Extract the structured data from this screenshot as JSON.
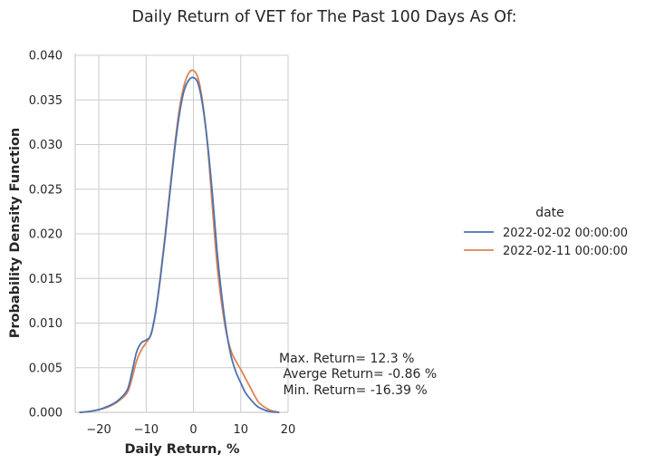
{
  "chart_data": {
    "type": "line",
    "title": "Daily Return of VET for The Past 100 Days As Of:",
    "xlabel": "Daily Return, %",
    "ylabel": "Probability Density Function",
    "xlim": [
      -25,
      20
    ],
    "ylim": [
      0,
      0.04
    ],
    "xticks": [
      -20,
      -10,
      0,
      10,
      20
    ],
    "xtick_labels": [
      "−20",
      "−10",
      "0",
      "10",
      "20"
    ],
    "yticks": [
      0,
      0.005,
      0.01,
      0.015,
      0.02,
      0.025,
      0.03,
      0.035,
      0.04
    ],
    "ytick_labels": [
      "0.000",
      "0.005",
      "0.010",
      "0.015",
      "0.020",
      "0.025",
      "0.030",
      "0.035",
      "0.040"
    ],
    "grid": true,
    "legend": {
      "title": "date",
      "placement": "right"
    },
    "series": [
      {
        "name": "2022-02-02 00:00:00",
        "color": "#4c72b0",
        "x": [
          -24,
          -22,
          -20,
          -18,
          -16,
          -14,
          -13,
          -12,
          -11,
          -10,
          -9,
          -8,
          -7,
          -6,
          -5,
          -4,
          -3,
          -2,
          -1,
          0,
          1,
          2,
          3,
          4,
          5,
          6,
          7,
          8,
          9,
          10,
          11,
          12,
          13,
          14,
          16,
          18
        ],
        "y": [
          0,
          0.0001,
          0.0003,
          0.0007,
          0.0013,
          0.0025,
          0.0045,
          0.0068,
          0.0078,
          0.0081,
          0.0087,
          0.0112,
          0.015,
          0.0195,
          0.0245,
          0.0293,
          0.0333,
          0.036,
          0.0372,
          0.0375,
          0.0368,
          0.0342,
          0.03,
          0.0245,
          0.018,
          0.013,
          0.009,
          0.0062,
          0.0045,
          0.0033,
          0.0022,
          0.0015,
          0.0009,
          0.0005,
          0.0001,
          0
        ]
      },
      {
        "name": "2022-02-11 00:00:00",
        "color": "#dd8452",
        "x": [
          -24,
          -22,
          -20,
          -18,
          -16,
          -14,
          -13,
          -12,
          -11,
          -10,
          -9,
          -8,
          -7,
          -6,
          -5,
          -4,
          -3,
          -2,
          -1,
          0,
          1,
          2,
          3,
          4,
          5,
          6,
          7,
          8,
          9,
          10,
          11,
          12,
          13,
          14,
          16,
          18
        ],
        "y": [
          0,
          0.0001,
          0.0003,
          0.0006,
          0.0012,
          0.0022,
          0.0038,
          0.0058,
          0.007,
          0.0078,
          0.0087,
          0.0113,
          0.0152,
          0.0198,
          0.0248,
          0.0297,
          0.0339,
          0.0366,
          0.038,
          0.0383,
          0.0374,
          0.0345,
          0.0298,
          0.023,
          0.0165,
          0.012,
          0.0088,
          0.0068,
          0.0057,
          0.0048,
          0.0038,
          0.0028,
          0.0018,
          0.001,
          0.0003,
          0
        ]
      }
    ],
    "annotations": [
      "Max. Return= 12.3 %",
      " Averge Return= -0.86 %",
      " Min. Return= -16.39 %"
    ]
  }
}
